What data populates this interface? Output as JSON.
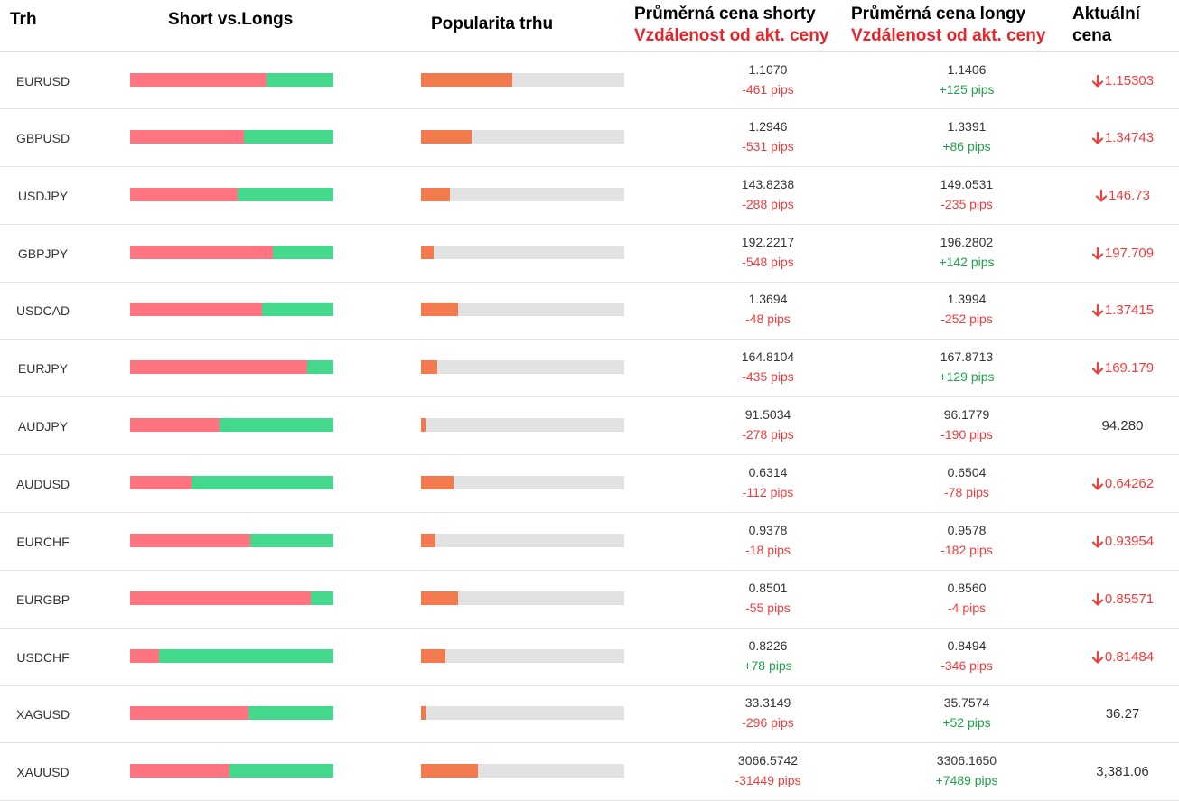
{
  "header": {
    "col_market": "Trh",
    "col_short_long": "Short vs.Longs",
    "col_popularity": "Popularita trhu",
    "col_avg_short": "Průměrná cena shorty",
    "col_avg_long": "Průměrná cena longy",
    "col_distance": "Vzdálenost od akt. ceny",
    "col_current_1": "Aktuální",
    "col_current_2": "cena"
  },
  "colors": {
    "short": "#ff7480",
    "long": "#44d88c",
    "popularity": "#f37a4c",
    "negative": "#f03c3c",
    "positive": "#1ea34a"
  },
  "rows": [
    {
      "market": "EURUSD",
      "short_pct": 67,
      "popularity_pct": 45,
      "avg_short": "1.1070",
      "short_dist": "-461 pips",
      "short_dist_pos": false,
      "avg_long": "1.1406",
      "long_dist": "+125 pips",
      "long_dist_pos": true,
      "current": "1.15303",
      "trend": "down"
    },
    {
      "market": "GBPUSD",
      "short_pct": 56,
      "popularity_pct": 25,
      "avg_short": "1.2946",
      "short_dist": "-531 pips",
      "short_dist_pos": false,
      "avg_long": "1.3391",
      "long_dist": "+86 pips",
      "long_dist_pos": true,
      "current": "1.34743",
      "trend": "down"
    },
    {
      "market": "USDJPY",
      "short_pct": 53,
      "popularity_pct": 14,
      "avg_short": "143.8238",
      "short_dist": "-288 pips",
      "short_dist_pos": false,
      "avg_long": "149.0531",
      "long_dist": "-235 pips",
      "long_dist_pos": false,
      "current": "146.73",
      "trend": "down"
    },
    {
      "market": "GBPJPY",
      "short_pct": 70,
      "popularity_pct": 6,
      "avg_short": "192.2217",
      "short_dist": "-548 pips",
      "short_dist_pos": false,
      "avg_long": "196.2802",
      "long_dist": "+142 pips",
      "long_dist_pos": true,
      "current": "197.709",
      "trend": "down"
    },
    {
      "market": "USDCAD",
      "short_pct": 65,
      "popularity_pct": 18,
      "avg_short": "1.3694",
      "short_dist": "-48 pips",
      "short_dist_pos": false,
      "avg_long": "1.3994",
      "long_dist": "-252 pips",
      "long_dist_pos": false,
      "current": "1.37415",
      "trend": "down"
    },
    {
      "market": "EURJPY",
      "short_pct": 87,
      "popularity_pct": 8,
      "avg_short": "164.8104",
      "short_dist": "-435 pips",
      "short_dist_pos": false,
      "avg_long": "167.8713",
      "long_dist": "+129 pips",
      "long_dist_pos": true,
      "current": "169.179",
      "trend": "down"
    },
    {
      "market": "AUDJPY",
      "short_pct": 44,
      "popularity_pct": 2,
      "avg_short": "91.5034",
      "short_dist": "-278 pips",
      "short_dist_pos": false,
      "avg_long": "96.1779",
      "long_dist": "-190 pips",
      "long_dist_pos": false,
      "current": "94.280",
      "trend": "flat"
    },
    {
      "market": "AUDUSD",
      "short_pct": 30,
      "popularity_pct": 16,
      "avg_short": "0.6314",
      "short_dist": "-112 pips",
      "short_dist_pos": false,
      "avg_long": "0.6504",
      "long_dist": "-78 pips",
      "long_dist_pos": false,
      "current": "0.64262",
      "trend": "down"
    },
    {
      "market": "EURCHF",
      "short_pct": 59,
      "popularity_pct": 7,
      "avg_short": "0.9378",
      "short_dist": "-18 pips",
      "short_dist_pos": false,
      "avg_long": "0.9578",
      "long_dist": "-182 pips",
      "long_dist_pos": false,
      "current": "0.93954",
      "trend": "down"
    },
    {
      "market": "EURGBP",
      "short_pct": 89,
      "popularity_pct": 18,
      "avg_short": "0.8501",
      "short_dist": "-55 pips",
      "short_dist_pos": false,
      "avg_long": "0.8560",
      "long_dist": "-4 pips",
      "long_dist_pos": false,
      "current": "0.85571",
      "trend": "down"
    },
    {
      "market": "USDCHF",
      "short_pct": 14,
      "popularity_pct": 12,
      "avg_short": "0.8226",
      "short_dist": "+78 pips",
      "short_dist_pos": true,
      "avg_long": "0.8494",
      "long_dist": "-346 pips",
      "long_dist_pos": false,
      "current": "0.81484",
      "trend": "down"
    },
    {
      "market": "XAGUSD",
      "short_pct": 58,
      "popularity_pct": 2,
      "avg_short": "33.3149",
      "short_dist": "-296 pips",
      "short_dist_pos": false,
      "avg_long": "35.7574",
      "long_dist": "+52 pips",
      "long_dist_pos": true,
      "current": "36.27",
      "trend": "flat"
    },
    {
      "market": "XAUUSD",
      "short_pct": 49,
      "popularity_pct": 28,
      "avg_short": "3066.5742",
      "short_dist": "-31449 pips",
      "short_dist_pos": false,
      "avg_long": "3306.1650",
      "long_dist": "+7489 pips",
      "long_dist_pos": true,
      "current": "3,381.06",
      "trend": "flat"
    }
  ]
}
